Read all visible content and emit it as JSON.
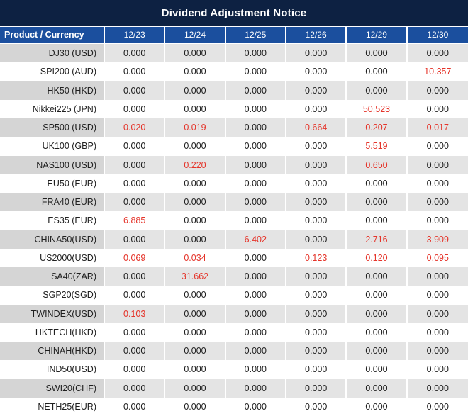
{
  "title": "Dividend Adjustment Notice",
  "colors": {
    "title_bg": "#0d2142",
    "header_bg": "#1b4f9e",
    "header_text": "#ffffff",
    "gray_row_product": "#d5d5d5",
    "gray_row_value": "#e4e4e4",
    "white_row": "#ffffff",
    "value_text": "#1f1f1f",
    "highlight_red": "#e5342a"
  },
  "chart_data": {
    "type": "table",
    "title": "Dividend Adjustment Notice",
    "columns": [
      "Product / Currency",
      "12/23",
      "12/24",
      "12/25",
      "12/26",
      "12/29",
      "12/30"
    ],
    "rows": [
      {
        "product": "DJ30 (USD)",
        "values": [
          "0.000",
          "0.000",
          "0.000",
          "0.000",
          "0.000",
          "0.000"
        ],
        "red": [
          false,
          false,
          false,
          false,
          false,
          false
        ]
      },
      {
        "product": "SPI200 (AUD)",
        "values": [
          "0.000",
          "0.000",
          "0.000",
          "0.000",
          "0.000",
          "10.357"
        ],
        "red": [
          false,
          false,
          false,
          false,
          false,
          true
        ]
      },
      {
        "product": "HK50 (HKD)",
        "values": [
          "0.000",
          "0.000",
          "0.000",
          "0.000",
          "0.000",
          "0.000"
        ],
        "red": [
          false,
          false,
          false,
          false,
          false,
          false
        ]
      },
      {
        "product": "Nikkei225 (JPN)",
        "values": [
          "0.000",
          "0.000",
          "0.000",
          "0.000",
          "50.523",
          "0.000"
        ],
        "red": [
          false,
          false,
          false,
          false,
          true,
          false
        ]
      },
      {
        "product": "SP500 (USD)",
        "values": [
          "0.020",
          "0.019",
          "0.000",
          "0.664",
          "0.207",
          "0.017"
        ],
        "red": [
          true,
          true,
          false,
          true,
          true,
          true
        ]
      },
      {
        "product": "UK100 (GBP)",
        "values": [
          "0.000",
          "0.000",
          "0.000",
          "0.000",
          "5.519",
          "0.000"
        ],
        "red": [
          false,
          false,
          false,
          false,
          true,
          false
        ]
      },
      {
        "product": "NAS100 (USD)",
        "values": [
          "0.000",
          "0.220",
          "0.000",
          "0.000",
          "0.650",
          "0.000"
        ],
        "red": [
          false,
          true,
          false,
          false,
          true,
          false
        ]
      },
      {
        "product": "EU50 (EUR)",
        "values": [
          "0.000",
          "0.000",
          "0.000",
          "0.000",
          "0.000",
          "0.000"
        ],
        "red": [
          false,
          false,
          false,
          false,
          false,
          false
        ]
      },
      {
        "product": "FRA40 (EUR)",
        "values": [
          "0.000",
          "0.000",
          "0.000",
          "0.000",
          "0.000",
          "0.000"
        ],
        "red": [
          false,
          false,
          false,
          false,
          false,
          false
        ]
      },
      {
        "product": "ES35 (EUR)",
        "values": [
          "6.885",
          "0.000",
          "0.000",
          "0.000",
          "0.000",
          "0.000"
        ],
        "red": [
          true,
          false,
          false,
          false,
          false,
          false
        ]
      },
      {
        "product": "CHINA50(USD)",
        "values": [
          "0.000",
          "0.000",
          "6.402",
          "0.000",
          "2.716",
          "3.909"
        ],
        "red": [
          false,
          false,
          true,
          false,
          true,
          true
        ]
      },
      {
        "product": "US2000(USD)",
        "values": [
          "0.069",
          "0.034",
          "0.000",
          "0.123",
          "0.120",
          "0.095"
        ],
        "red": [
          true,
          true,
          false,
          true,
          true,
          true
        ]
      },
      {
        "product": "SA40(ZAR)",
        "values": [
          "0.000",
          "31.662",
          "0.000",
          "0.000",
          "0.000",
          "0.000"
        ],
        "red": [
          false,
          true,
          false,
          false,
          false,
          false
        ]
      },
      {
        "product": "SGP20(SGD)",
        "values": [
          "0.000",
          "0.000",
          "0.000",
          "0.000",
          "0.000",
          "0.000"
        ],
        "red": [
          false,
          false,
          false,
          false,
          false,
          false
        ]
      },
      {
        "product": "TWINDEX(USD)",
        "values": [
          "0.103",
          "0.000",
          "0.000",
          "0.000",
          "0.000",
          "0.000"
        ],
        "red": [
          true,
          false,
          false,
          false,
          false,
          false
        ]
      },
      {
        "product": "HKTECH(HKD)",
        "values": [
          "0.000",
          "0.000",
          "0.000",
          "0.000",
          "0.000",
          "0.000"
        ],
        "red": [
          false,
          false,
          false,
          false,
          false,
          false
        ]
      },
      {
        "product": "CHINAH(HKD)",
        "values": [
          "0.000",
          "0.000",
          "0.000",
          "0.000",
          "0.000",
          "0.000"
        ],
        "red": [
          false,
          false,
          false,
          false,
          false,
          false
        ]
      },
      {
        "product": "IND50(USD)",
        "values": [
          "0.000",
          "0.000",
          "0.000",
          "0.000",
          "0.000",
          "0.000"
        ],
        "red": [
          false,
          false,
          false,
          false,
          false,
          false
        ]
      },
      {
        "product": "SWI20(CHF)",
        "values": [
          "0.000",
          "0.000",
          "0.000",
          "0.000",
          "0.000",
          "0.000"
        ],
        "red": [
          false,
          false,
          false,
          false,
          false,
          false
        ]
      },
      {
        "product": "NETH25(EUR)",
        "values": [
          "0.000",
          "0.000",
          "0.000",
          "0.000",
          "0.000",
          "0.000"
        ],
        "red": [
          false,
          false,
          false,
          false,
          false,
          false
        ]
      }
    ]
  }
}
